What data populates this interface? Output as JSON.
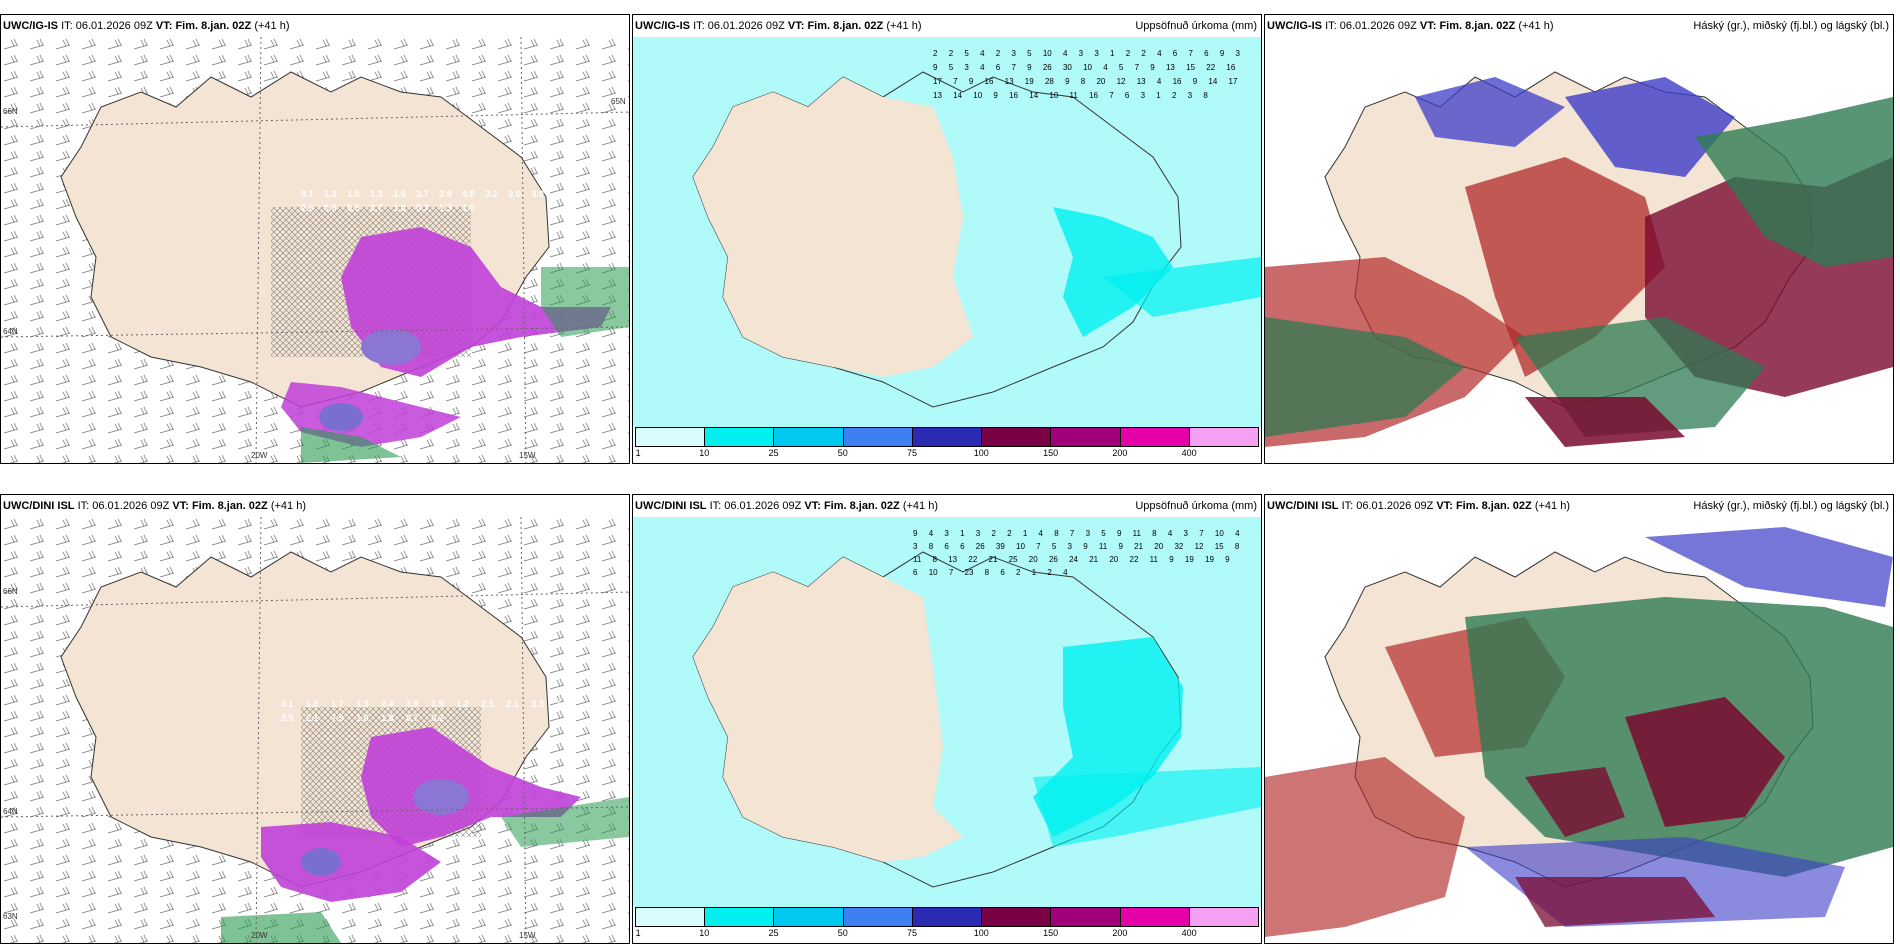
{
  "panels": [
    {
      "model": "UWC/IG-IS",
      "issue_label": "IT:",
      "issue_time": "06.01.2026 09Z",
      "valid_label": "VT:",
      "valid_time": "Fim. 8.jan. 02Z",
      "lead": "(+41 h)",
      "title": "",
      "kind": "wind",
      "values": [
        "0.1",
        "1.3",
        "1.5",
        "1.3",
        "1.5",
        "3.7",
        "2.9",
        "4.0",
        "3.2",
        "2.0",
        "3.0",
        "2.6",
        "0.9",
        "0.5",
        "0.7",
        "1.0",
        "0.7",
        "1.3",
        "1.0"
      ],
      "lat_labels": [
        "66N",
        "64N",
        "65N"
      ],
      "lon_labels": [
        "20W",
        "15W"
      ]
    },
    {
      "model": "UWC/IG-IS",
      "issue_label": "IT:",
      "issue_time": "06.01.2026 09Z",
      "valid_label": "VT:",
      "valid_time": "Fim. 8.jan. 02Z",
      "lead": "(+41 h)",
      "title": "Uppsöfnuð úrkoma (mm)",
      "kind": "precip",
      "values": [
        "2",
        "2",
        "5",
        "4",
        "2",
        "3",
        "5",
        "10",
        "4",
        "3",
        "3",
        "1",
        "2",
        "2",
        "4",
        "6",
        "7",
        "6",
        "9",
        "3",
        "9",
        "5",
        "3",
        "4",
        "6",
        "7",
        "9",
        "26",
        "30",
        "10",
        "4",
        "5",
        "7",
        "9",
        "13",
        "15",
        "22",
        "16",
        "17",
        "7",
        "9",
        "16",
        "13",
        "19",
        "28",
        "9",
        "8",
        "20",
        "12",
        "13",
        "4",
        "16",
        "9",
        "14",
        "17",
        "13",
        "14",
        "10",
        "9",
        "16",
        "14",
        "10",
        "11",
        "16",
        "7",
        "6",
        "3",
        "1",
        "2",
        "3",
        "8"
      ],
      "scale": [
        "1",
        "10",
        "25",
        "50",
        "75",
        "100",
        "150",
        "200",
        "400"
      ]
    },
    {
      "model": "UWC/IG-IS",
      "issue_label": "IT:",
      "issue_time": "06.01.2026 09Z",
      "valid_label": "VT:",
      "valid_time": "Fim. 8.jan. 02Z",
      "lead": "(+41 h)",
      "title": "Háský (gr.), miðský (fj.bl.) og lágský (bl.)",
      "kind": "cloud"
    },
    {
      "model": "UWC/DINI ISL",
      "issue_label": "IT:",
      "issue_time": "06.01.2026 09Z",
      "valid_label": "VT:",
      "valid_time": "Fim. 8.jan. 02Z",
      "lead": "(+41 h)",
      "title": "",
      "kind": "wind",
      "values": [
        "0.1",
        "1.6",
        "1.7",
        "1.3",
        "2.4",
        "3.9",
        "1.9",
        "1.2",
        "2.5",
        "2.1",
        "3.3",
        "1.8",
        "2.5",
        "2.1",
        "7.5",
        "1.0",
        "1.8",
        "0.7",
        "0.2"
      ],
      "lat_labels": [
        "66N",
        "64N",
        "63N"
      ],
      "lon_labels": [
        "20W",
        "15W"
      ]
    },
    {
      "model": "UWC/DINI ISL",
      "issue_label": "IT:",
      "issue_time": "06.01.2026 09Z",
      "valid_label": "VT:",
      "valid_time": "Fim. 8.jan. 02Z",
      "lead": "(+41 h)",
      "title": "Uppsöfnuð úrkoma (mm)",
      "kind": "precip",
      "values": [
        "9",
        "4",
        "3",
        "1",
        "3",
        "2",
        "2",
        "1",
        "4",
        "8",
        "7",
        "3",
        "5",
        "9",
        "11",
        "8",
        "4",
        "3",
        "7",
        "10",
        "4",
        "3",
        "8",
        "6",
        "6",
        "26",
        "39",
        "10",
        "7",
        "5",
        "3",
        "9",
        "11",
        "9",
        "21",
        "20",
        "32",
        "12",
        "15",
        "8",
        "11",
        "8",
        "13",
        "22",
        "21",
        "25",
        "20",
        "26",
        "24",
        "21",
        "20",
        "22",
        "11",
        "9",
        "19",
        "19",
        "9",
        "6",
        "10",
        "7",
        "23",
        "8",
        "6",
        "2",
        "1",
        "2",
        "4"
      ],
      "scale": [
        "1",
        "10",
        "25",
        "50",
        "75",
        "100",
        "150",
        "200",
        "400"
      ]
    },
    {
      "model": "UWC/DINI ISL",
      "issue_label": "IT:",
      "issue_time": "06.01.2026 09Z",
      "valid_label": "VT:",
      "valid_time": "Fim. 8.jan. 02Z",
      "lead": "(+41 h)",
      "title": "Háský (gr.), miðský (fj.bl.) og lágský (bl.)",
      "kind": "cloud"
    }
  ],
  "colors": {
    "land": "#f3e4d4",
    "sea": "#ffffff",
    "precip_scale": [
      "#d8fbfb",
      "#00f0f0",
      "#00c8ee",
      "#3e7ff2",
      "#2a2ab5",
      "#7a0046",
      "#a0007a",
      "#e600a8",
      "#f5a0f0"
    ],
    "snow_purple": "#c040d8",
    "rain_green": "#2a9a50",
    "cloud_high": "#2e7a52",
    "cloud_mid": "#b22a2a",
    "cloud_low": "#3c3cc8"
  }
}
